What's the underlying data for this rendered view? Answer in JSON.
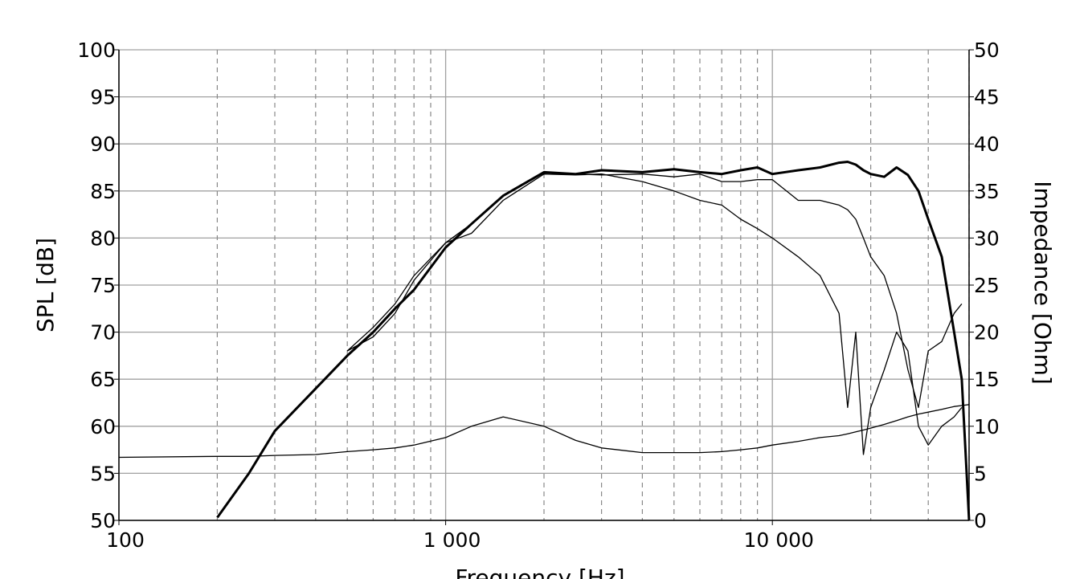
{
  "chart_data": {
    "type": "line",
    "x_label": "Frequency [Hz]",
    "y_label": "SPL [dB]",
    "y2_label": "Impedance [Ohm]",
    "x_scale": "log",
    "grid": true,
    "xlim": [
      100,
      40000
    ],
    "xticks": [
      {
        "value": 100,
        "label": "100"
      },
      {
        "value": 1000,
        "label": "1 000"
      },
      {
        "value": 10000,
        "label": "10 000"
      }
    ],
    "xminor_ticks": [
      200,
      300,
      400,
      500,
      600,
      700,
      800,
      900,
      2000,
      3000,
      4000,
      5000,
      6000,
      7000,
      8000,
      9000,
      20000,
      30000,
      40000
    ],
    "ylim": [
      50,
      100
    ],
    "yticks": [
      50,
      55,
      60,
      65,
      70,
      75,
      80,
      85,
      90,
      95,
      100
    ],
    "y2lim": [
      0,
      50
    ],
    "y2ticks": [
      0,
      5,
      10,
      15,
      20,
      25,
      30,
      35,
      40,
      45,
      50
    ],
    "x": [
      100,
      200,
      250,
      300,
      400,
      500,
      600,
      700,
      800,
      1000,
      1200,
      1500,
      2000,
      2500,
      3000,
      4000,
      5000,
      6000,
      7000,
      8000,
      9000,
      10000,
      12000,
      14000,
      16000,
      17000,
      18000,
      19000,
      20000,
      22000,
      24000,
      26000,
      28000,
      30000,
      33000,
      36000,
      38000,
      40000
    ],
    "series": [
      {
        "color": "#000000",
        "width": 3,
        "values": [
          null,
          50.3,
          55,
          59.5,
          64,
          67.5,
          70,
          72.5,
          74.5,
          79,
          81.5,
          84.5,
          87,
          86.8,
          87.2,
          87,
          87.3,
          87,
          86.8,
          87.2,
          87.5,
          86.8,
          87.2,
          87.5,
          88,
          88.1,
          87.8,
          87.2,
          86.8,
          86.5,
          87.5,
          86.7,
          85,
          82,
          78,
          70,
          65,
          50
        ]
      },
      {
        "color": "#000000",
        "width": 1.3,
        "values": [
          null,
          null,
          null,
          null,
          null,
          68,
          69.5,
          72,
          75.5,
          79.5,
          80.5,
          84,
          86.8,
          86.7,
          86.8,
          86,
          85,
          84,
          83.5,
          82,
          81,
          80,
          78,
          76,
          72,
          62,
          70,
          57,
          62,
          66,
          70,
          68,
          60,
          58,
          60,
          61,
          62,
          null
        ]
      },
      {
        "color": "#000000",
        "width": 1.3,
        "values": [
          null,
          null,
          null,
          null,
          null,
          68,
          70.5,
          73,
          76,
          79.5,
          81.5,
          84.5,
          87,
          86.8,
          86.7,
          86.8,
          86.5,
          86.8,
          86,
          86,
          86.2,
          86.2,
          84,
          84,
          83.5,
          83,
          82,
          80,
          78,
          76,
          72,
          66,
          62,
          68,
          69,
          72,
          73,
          null
        ]
      },
      {
        "color": "#000000",
        "width": 1.3,
        "axis": "y2",
        "values": [
          6.7,
          6.8,
          6.8,
          6.9,
          7,
          7.3,
          7.5,
          7.7,
          8,
          8.8,
          10,
          11,
          10,
          8.5,
          7.7,
          7.2,
          7.2,
          7.2,
          7.3,
          7.5,
          7.7,
          8,
          8.4,
          8.8,
          9,
          9.2,
          9.4,
          9.6,
          9.8,
          10.2,
          10.6,
          11,
          11.3,
          11.5,
          11.8,
          12.1,
          12.2,
          12.3
        ]
      }
    ]
  }
}
